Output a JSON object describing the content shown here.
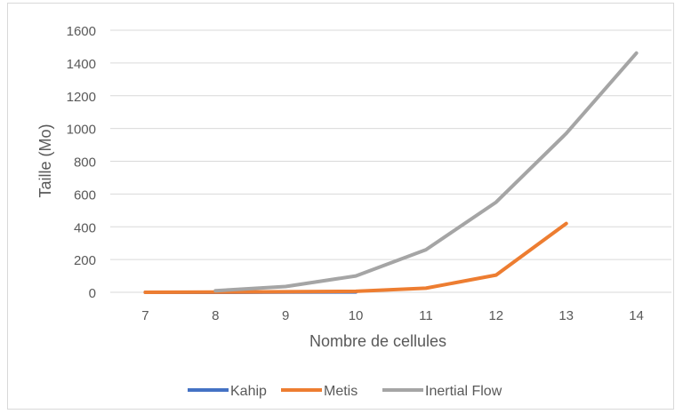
{
  "chart_data": {
    "type": "line",
    "title": "",
    "xlabel": "Nombre de cellules",
    "ylabel": "Taille (Mo)",
    "x": [
      7,
      8,
      9,
      10,
      11,
      12,
      13,
      14
    ],
    "ylim": [
      0,
      1600
    ],
    "yticks": [
      0,
      200,
      400,
      600,
      800,
      1000,
      1200,
      1400,
      1600
    ],
    "grid": "horizontal",
    "legend_position": "bottom",
    "series": [
      {
        "name": "Kahip",
        "color": "#4472c4",
        "values": [
          0,
          0,
          1,
          2,
          null,
          null,
          null,
          null
        ]
      },
      {
        "name": "Metis",
        "color": "#ed7d31",
        "values": [
          0,
          1,
          3,
          6,
          25,
          105,
          420,
          null
        ]
      },
      {
        "name": "Inertial Flow",
        "color": "#a5a5a5",
        "values": [
          null,
          10,
          35,
          100,
          260,
          550,
          970,
          1460
        ]
      }
    ]
  }
}
